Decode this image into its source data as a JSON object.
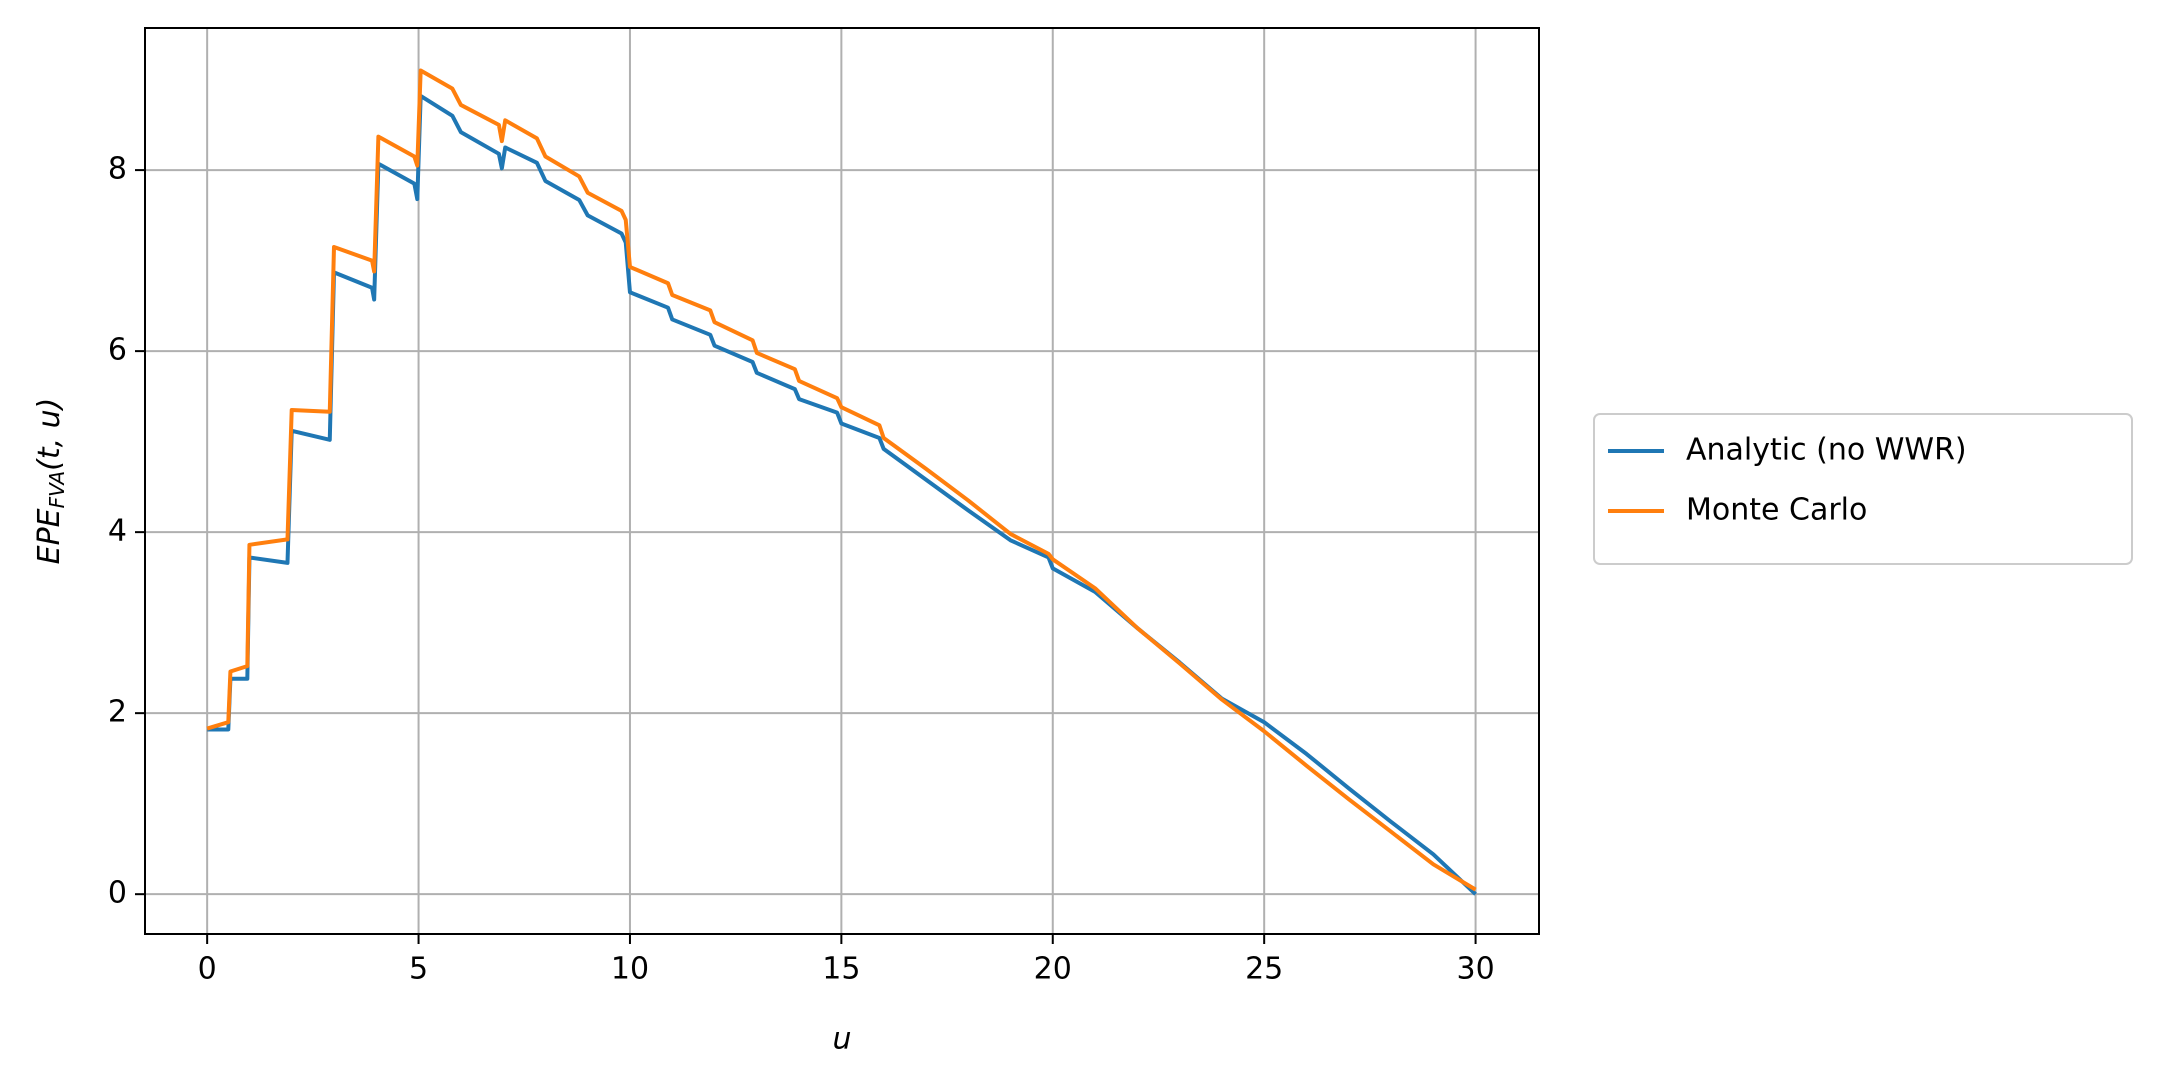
{
  "chart_data": {
    "type": "line",
    "xlabel": "u",
    "ylabel": {
      "main": "EPE",
      "sub": "FVA",
      "rest": "(t, u)"
    },
    "x": [
      0,
      0.5,
      0.55,
      0.95,
      1.0,
      1.9,
      2.0,
      2.9,
      3.0,
      3.9,
      3.95,
      4.05,
      4.9,
      4.97,
      5.05,
      5.8,
      6.0,
      6.9,
      6.97,
      7.05,
      7.8,
      8.0,
      8.8,
      9.0,
      9.8,
      9.9,
      10.0,
      10.9,
      11.0,
      11.9,
      12.0,
      12.9,
      13.0,
      13.9,
      14.0,
      14.9,
      15.0,
      15.9,
      16.0,
      17.0,
      18.0,
      19.0,
      19.9,
      20.0,
      21.0,
      22.0,
      23.0,
      24.0,
      25.0,
      26.0,
      27.0,
      28.0,
      29.0,
      30.0
    ],
    "series": [
      {
        "name": "Analytic (no WWR)",
        "color": "#1f77b4",
        "values": [
          1.82,
          1.82,
          2.38,
          2.38,
          3.72,
          3.66,
          5.12,
          5.02,
          6.87,
          6.7,
          6.57,
          8.07,
          7.85,
          7.68,
          8.82,
          8.6,
          8.42,
          8.18,
          8.02,
          8.25,
          8.08,
          7.88,
          7.67,
          7.5,
          7.3,
          7.2,
          6.65,
          6.48,
          6.35,
          6.18,
          6.06,
          5.88,
          5.76,
          5.58,
          5.47,
          5.32,
          5.2,
          5.04,
          4.92,
          4.58,
          4.24,
          3.91,
          3.72,
          3.6,
          3.34,
          2.94,
          2.56,
          2.16,
          1.9,
          1.55,
          1.17,
          0.8,
          0.44,
          0.0
        ]
      },
      {
        "name": "Monte Carlo",
        "color": "#ff7f0e",
        "values": [
          1.83,
          1.9,
          2.46,
          2.52,
          3.86,
          3.92,
          5.35,
          5.33,
          7.15,
          7.0,
          6.88,
          8.37,
          8.15,
          8.05,
          9.1,
          8.9,
          8.72,
          8.5,
          8.32,
          8.55,
          8.35,
          8.15,
          7.93,
          7.75,
          7.55,
          7.45,
          6.93,
          6.75,
          6.62,
          6.45,
          6.32,
          6.12,
          5.98,
          5.8,
          5.67,
          5.48,
          5.38,
          5.18,
          5.04,
          4.7,
          4.35,
          3.98,
          3.76,
          3.7,
          3.38,
          2.94,
          2.55,
          2.15,
          1.8,
          1.42,
          1.05,
          0.69,
          0.33,
          0.05
        ]
      }
    ],
    "xlim": [
      -1.47,
      31.5
    ],
    "xticks": [
      0,
      5,
      10,
      15,
      20,
      25,
      30
    ],
    "ylim": [
      -0.44,
      9.57
    ],
    "yticks": [
      0,
      2,
      4,
      6,
      8
    ],
    "grid": true,
    "legend": "right"
  }
}
